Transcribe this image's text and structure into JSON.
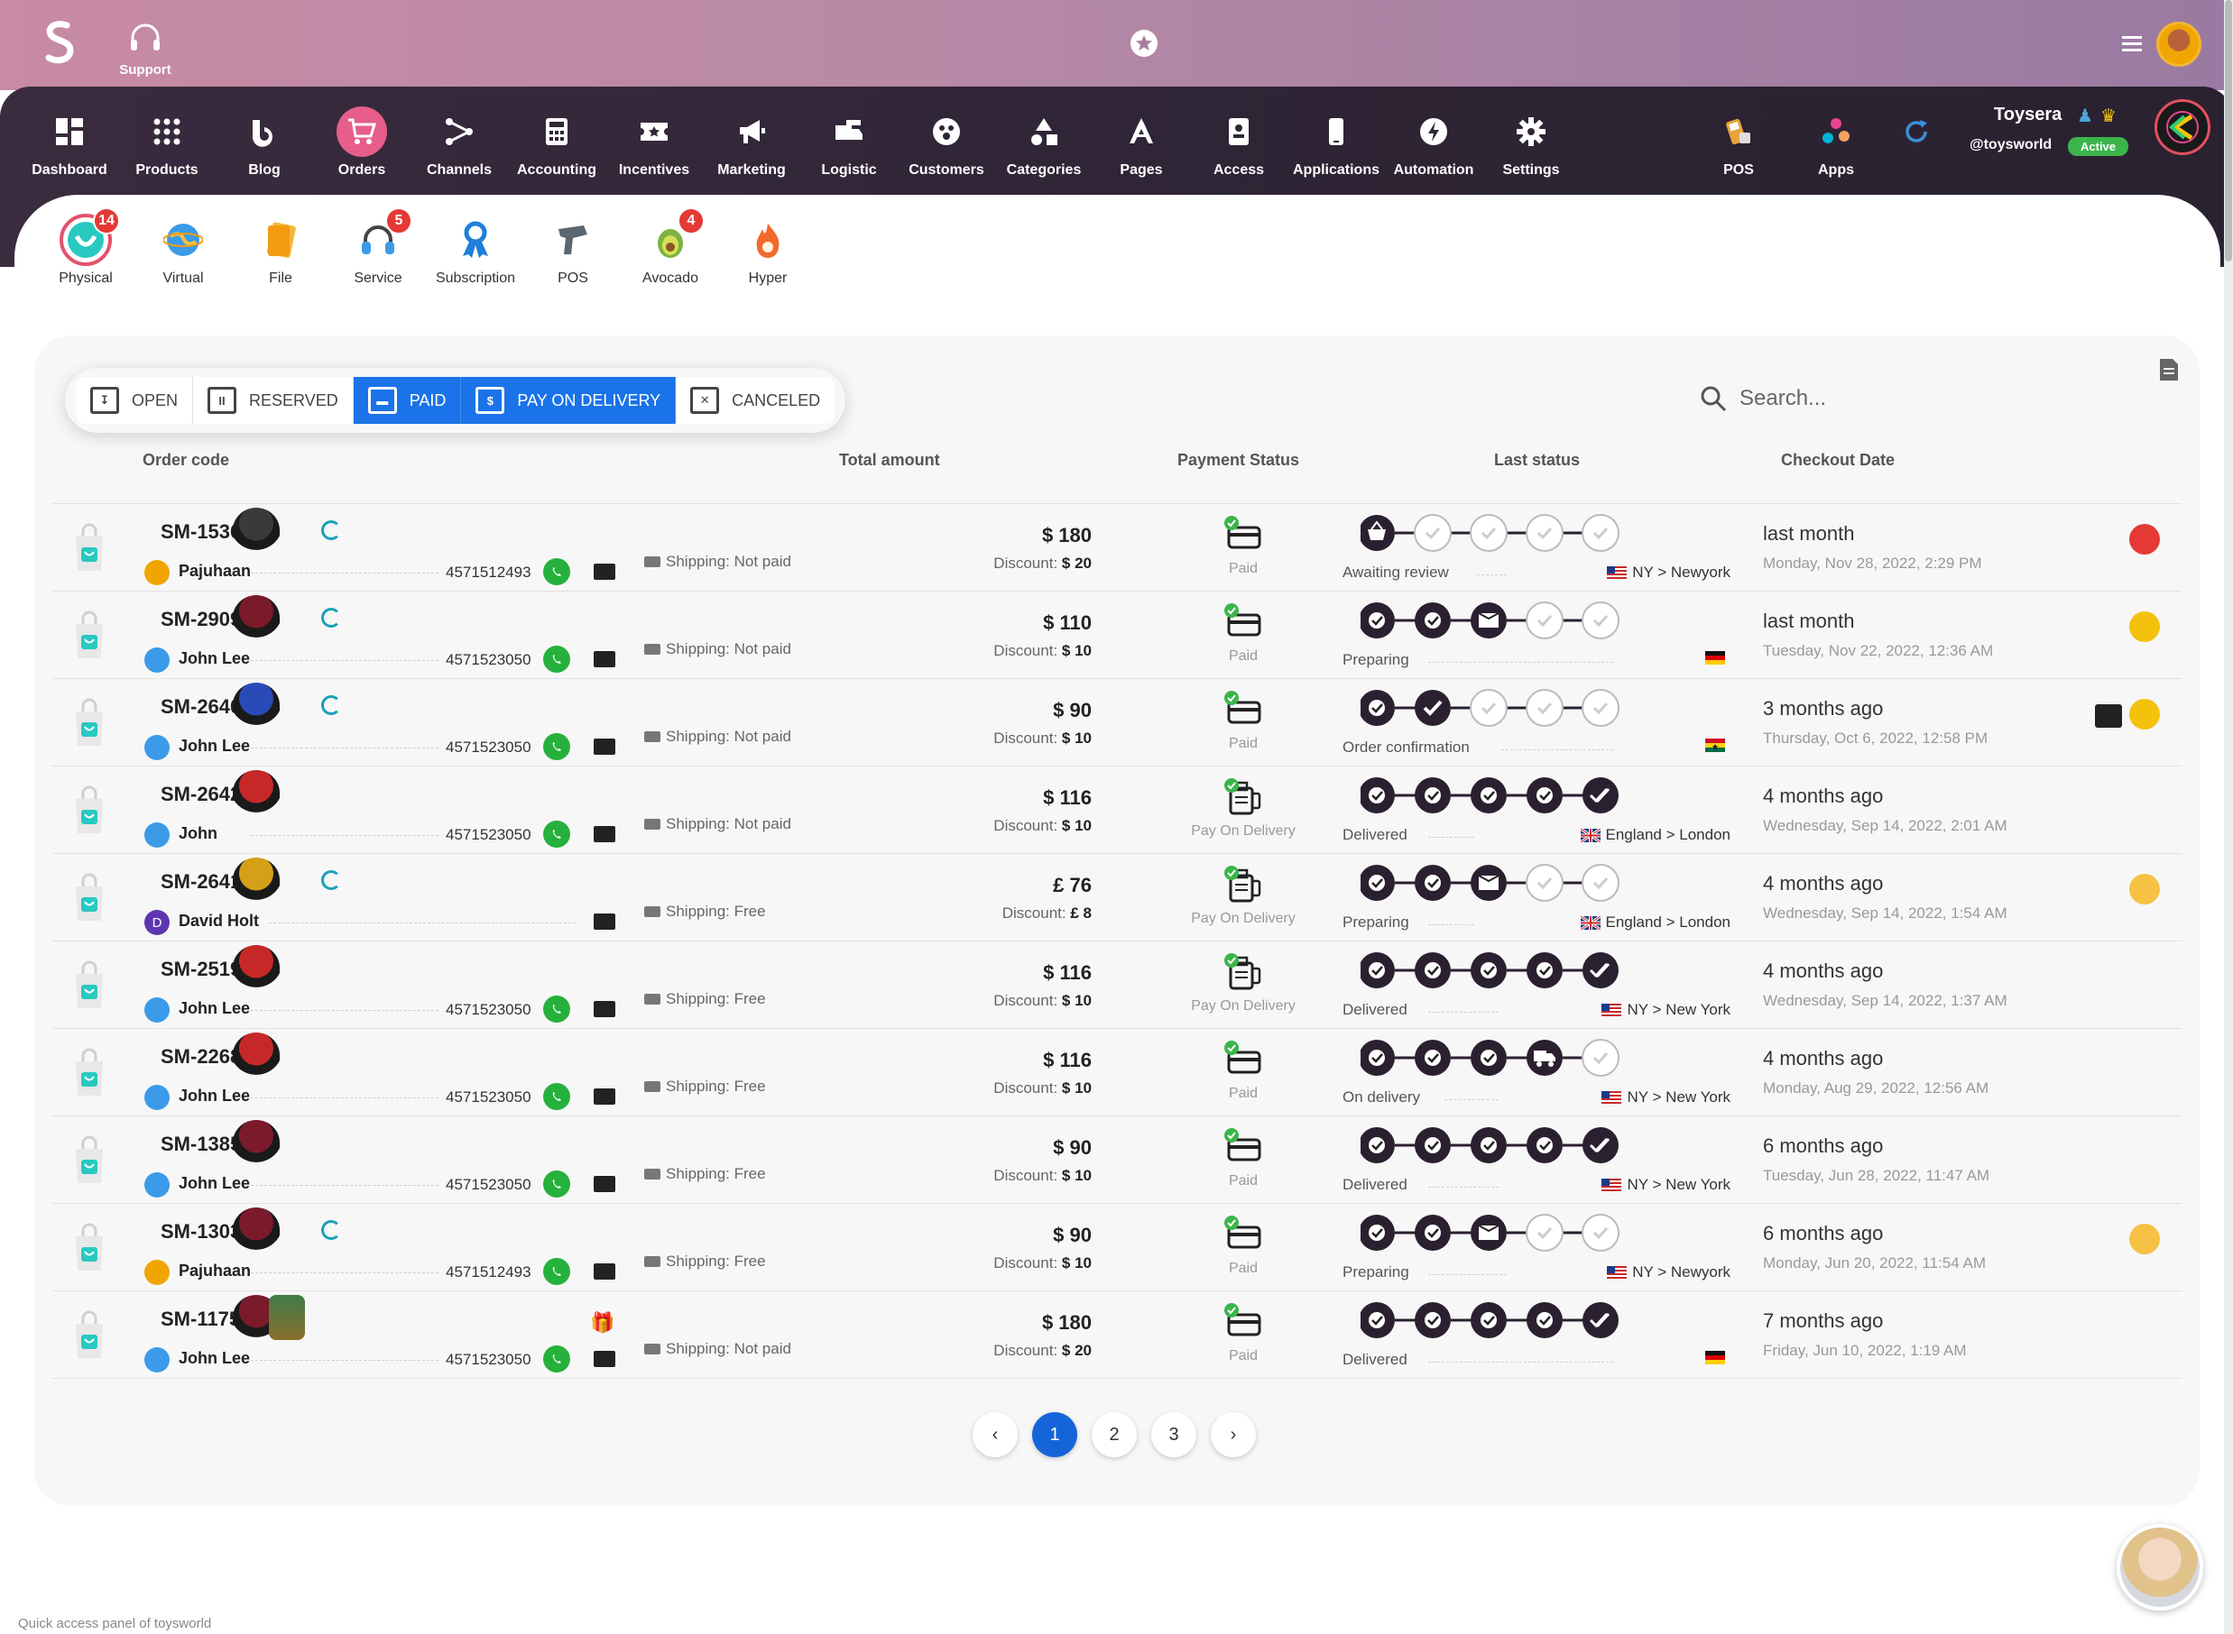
{
  "topbar": {
    "support_label": "Support"
  },
  "nav": {
    "items": [
      {
        "label": "Dashboard",
        "icon": "dashboard-icon"
      },
      {
        "label": "Products",
        "icon": "grid-icon"
      },
      {
        "label": "Blog",
        "icon": "blog-icon"
      },
      {
        "label": "Orders",
        "icon": "cart-icon",
        "active": true
      },
      {
        "label": "Channels",
        "icon": "channels-icon"
      },
      {
        "label": "Accounting",
        "icon": "calculator-icon"
      },
      {
        "label": "Incentives",
        "icon": "ticket-icon"
      },
      {
        "label": "Marketing",
        "icon": "megaphone-icon"
      },
      {
        "label": "Logistic",
        "icon": "truck-icon"
      },
      {
        "label": "Customers",
        "icon": "customers-icon"
      },
      {
        "label": "Categories",
        "icon": "shapes-icon"
      },
      {
        "label": "Pages",
        "icon": "pages-icon"
      },
      {
        "label": "Access",
        "icon": "badge-icon"
      },
      {
        "label": "Applications",
        "icon": "phone-icon"
      },
      {
        "label": "Automation",
        "icon": "bolt-icon"
      },
      {
        "label": "Settings",
        "icon": "gear-icon"
      }
    ],
    "pos_label": "POS",
    "apps_label": "Apps",
    "user": {
      "name": "Toysera",
      "handle": "@toysworld",
      "status": "Active"
    }
  },
  "subnav": {
    "items": [
      {
        "label": "Physical",
        "count": "14"
      },
      {
        "label": "Virtual",
        "count": ""
      },
      {
        "label": "File",
        "count": ""
      },
      {
        "label": "Service",
        "count": "5"
      },
      {
        "label": "Subscription",
        "count": ""
      },
      {
        "label": "POS",
        "count": ""
      },
      {
        "label": "Avocado",
        "count": "4"
      },
      {
        "label": "Hyper",
        "count": ""
      }
    ]
  },
  "filters": {
    "open": "OPEN",
    "reserved": "RESERVED",
    "paid": "PAID",
    "pay_on_delivery": "PAY ON DELIVERY",
    "canceled": "CANCELED"
  },
  "search": {
    "placeholder": "Search..."
  },
  "columns": {
    "order_code": "Order code",
    "total_amount": "Total amount",
    "payment_status": "Payment Status",
    "last_status": "Last status",
    "checkout_date": "Checkout Date"
  },
  "orders": [
    {
      "code": "SM-1530",
      "customer": "Pajuhaan",
      "phone": "4571512493",
      "shipping": "Shipping: Not paid",
      "amount": "$ 180",
      "discount_label": "Discount:",
      "discount": "$ 20",
      "payment": "Paid",
      "status": "Awaiting review",
      "destination": "NY > Newyork",
      "when": "last month",
      "date": "Monday, Nov 28, 2022, 2:29 PM"
    },
    {
      "code": "SM-2909",
      "customer": "John Lee",
      "phone": "4571523050",
      "shipping": "Shipping: Not paid",
      "amount": "$ 110",
      "discount_label": "Discount:",
      "discount": "$ 10",
      "payment": "Paid",
      "status": "Preparing",
      "destination": "",
      "when": "last month",
      "date": "Tuesday, Nov 22, 2022, 12:36 AM"
    },
    {
      "code": "SM-2640",
      "customer": "John Lee",
      "phone": "4571523050",
      "shipping": "Shipping: Not paid",
      "amount": "$ 90",
      "discount_label": "Discount:",
      "discount": "$ 10",
      "payment": "Paid",
      "status": "Order confirmation",
      "destination": "",
      "when": "3 months ago",
      "date": "Thursday, Oct 6, 2022, 12:58 PM"
    },
    {
      "code": "SM-2642",
      "customer": "John",
      "phone": "4571523050",
      "shipping": "Shipping: Not paid",
      "amount": "$ 116",
      "discount_label": "Discount:",
      "discount": "$ 10",
      "payment": "Pay On Delivery",
      "status": "Delivered",
      "destination": "England > London",
      "when": "4 months ago",
      "date": "Wednesday, Sep 14, 2022, 2:01 AM"
    },
    {
      "code": "SM-2641",
      "customer": "David Holt",
      "phone": "",
      "shipping": "Shipping: Free",
      "amount": "£ 76",
      "discount_label": "Discount:",
      "discount": "£ 8",
      "payment": "Pay On Delivery",
      "status": "Preparing",
      "destination": "England > London",
      "when": "4 months ago",
      "date": "Wednesday, Sep 14, 2022, 1:54 AM"
    },
    {
      "code": "SM-2519",
      "customer": "John Lee",
      "phone": "4571523050",
      "shipping": "Shipping: Free",
      "amount": "$ 116",
      "discount_label": "Discount:",
      "discount": "$ 10",
      "payment": "Pay On Delivery",
      "status": "Delivered",
      "destination": "NY > New York",
      "when": "4 months ago",
      "date": "Wednesday, Sep 14, 2022, 1:37 AM"
    },
    {
      "code": "SM-2268",
      "customer": "John Lee",
      "phone": "4571523050",
      "shipping": "Shipping: Free",
      "amount": "$ 116",
      "discount_label": "Discount:",
      "discount": "$ 10",
      "payment": "Paid",
      "status": "On delivery",
      "destination": "NY > New York",
      "when": "4 months ago",
      "date": "Monday, Aug 29, 2022, 12:56 AM"
    },
    {
      "code": "SM-1385",
      "customer": "John Lee",
      "phone": "4571523050",
      "shipping": "Shipping: Free",
      "amount": "$ 90",
      "discount_label": "Discount:",
      "discount": "$ 10",
      "payment": "Paid",
      "status": "Delivered",
      "destination": "NY > New York",
      "when": "6 months ago",
      "date": "Tuesday, Jun 28, 2022, 11:47 AM"
    },
    {
      "code": "SM-1303",
      "customer": "Pajuhaan",
      "phone": "4571512493",
      "shipping": "Shipping: Free",
      "amount": "$ 90",
      "discount_label": "Discount:",
      "discount": "$ 10",
      "payment": "Paid",
      "status": "Preparing",
      "destination": "NY > Newyork",
      "when": "6 months ago",
      "date": "Monday, Jun 20, 2022, 11:54 AM"
    },
    {
      "code": "SM-1175",
      "customer": "John Lee",
      "phone": "4571523050",
      "shipping": "Shipping: Not paid",
      "amount": "$ 180",
      "discount_label": "Discount:",
      "discount": "$ 20",
      "payment": "Paid",
      "status": "Delivered",
      "destination": "",
      "when": "7 months ago",
      "date": "Friday, Jun 10, 2022, 1:19 AM"
    }
  ],
  "pagination": {
    "pages": [
      "1",
      "2",
      "3"
    ],
    "current": "1"
  },
  "footer": {
    "text": "Quick access panel of toysworld"
  },
  "colors": {
    "accent": "#1a73e8",
    "nav_bg": "#2f2536",
    "active_nav": "#e65e89",
    "badge": "#e53935",
    "success": "#3bb54a"
  }
}
